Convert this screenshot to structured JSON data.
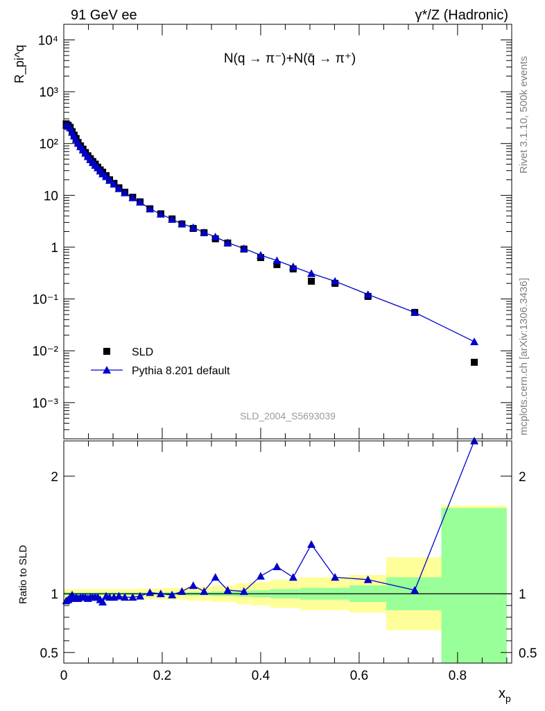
{
  "header": {
    "left": "91 GeV ee",
    "right": "γ*/Z (Hadronic)"
  },
  "side_labels": {
    "rivet": "Rivet 3.1.10,  500k events",
    "mcplots": "mcplots.cern.ch [arXiv:1306.3436]"
  },
  "colors": {
    "data": "#000000",
    "mc": "#0000cc",
    "band_stat": "#99ff99",
    "band_total": "#ffff99",
    "analysis_label": "#999999"
  },
  "chart_data": [
    {
      "type": "scatter",
      "panel": "main",
      "title": "N(q → π⁻)+N(q̄ → π⁺)",
      "analysis": "SLD_2004_S5693039",
      "ylabel": "R_pi^q",
      "xlabel": "",
      "yscale": "log",
      "xlim": [
        0,
        0.91
      ],
      "ylim": [
        0.0002,
        20000
      ],
      "y_ticks": [
        {
          "v": 0.001,
          "label": "10⁻³"
        },
        {
          "v": 0.01,
          "label": "10⁻²"
        },
        {
          "v": 0.1,
          "label": "10⁻¹"
        },
        {
          "v": 1,
          "label": "1"
        },
        {
          "v": 10,
          "label": "10"
        },
        {
          "v": 100,
          "label": "10²"
        },
        {
          "v": 1000,
          "label": "10³"
        },
        {
          "v": 10000,
          "label": "10⁴"
        }
      ],
      "legend": {
        "position": "bottom-left",
        "entries": [
          "SLD",
          "Pythia 8.201 default"
        ]
      },
      "series": [
        {
          "name": "SLD",
          "marker": "square",
          "x": [
            0.005,
            0.009,
            0.013,
            0.017,
            0.021,
            0.025,
            0.029,
            0.034,
            0.039,
            0.044,
            0.049,
            0.054,
            0.059,
            0.064,
            0.069,
            0.074,
            0.079,
            0.086,
            0.093,
            0.102,
            0.112,
            0.124,
            0.14,
            0.155,
            0.175,
            0.197,
            0.22,
            0.24,
            0.263,
            0.285,
            0.308,
            0.333,
            0.366,
            0.4,
            0.433,
            0.466,
            0.503,
            0.551,
            0.618,
            0.713,
            0.834
          ],
          "y": [
            240,
            225,
            205,
            170,
            145,
            125,
            105,
            90,
            78,
            67,
            58,
            51,
            45,
            40,
            35,
            31,
            28,
            24,
            20,
            17,
            14,
            11.5,
            9.2,
            7.5,
            5.5,
            4.4,
            3.5,
            2.8,
            2.3,
            1.9,
            1.45,
            1.2,
            0.92,
            0.63,
            0.46,
            0.38,
            0.22,
            0.2,
            0.112,
            0.055,
            0.006
          ]
        },
        {
          "name": "Pythia 8.201 default",
          "marker": "triangle",
          "x": [
            0.005,
            0.009,
            0.013,
            0.017,
            0.021,
            0.025,
            0.029,
            0.034,
            0.039,
            0.044,
            0.049,
            0.054,
            0.059,
            0.064,
            0.069,
            0.074,
            0.079,
            0.086,
            0.093,
            0.102,
            0.112,
            0.124,
            0.14,
            0.155,
            0.175,
            0.197,
            0.22,
            0.24,
            0.263,
            0.285,
            0.308,
            0.333,
            0.366,
            0.4,
            0.433,
            0.466,
            0.503,
            0.551,
            0.618,
            0.713,
            0.834
          ],
          "y": [
            225,
            215,
            200,
            165,
            140,
            120,
            101,
            87,
            75,
            65,
            56,
            49,
            43,
            38,
            34,
            29.5,
            26,
            23,
            19.5,
            16.5,
            13.5,
            11.2,
            9,
            7.4,
            5.5,
            4.35,
            3.45,
            2.82,
            2.4,
            1.92,
            1.58,
            1.22,
            0.94,
            0.7,
            0.55,
            0.42,
            0.31,
            0.22,
            0.122,
            0.055,
            0.015
          ]
        }
      ]
    },
    {
      "type": "line",
      "panel": "ratio",
      "ylabel": "Ratio to SLD",
      "xlabel": "x_p",
      "xlim": [
        0,
        0.91
      ],
      "ylim": [
        0.41,
        2.3
      ],
      "x_ticks": [
        {
          "v": 0,
          "label": "0"
        },
        {
          "v": 0.2,
          "label": "0.2"
        },
        {
          "v": 0.4,
          "label": "0.4"
        },
        {
          "v": 0.6,
          "label": "0.6"
        },
        {
          "v": 0.8,
          "label": "0.8"
        }
      ],
      "y_ticks": [
        {
          "v": 0.5,
          "label": "0.5"
        },
        {
          "v": 1,
          "label": "1"
        },
        {
          "v": 2,
          "label": "2"
        }
      ],
      "bins": [
        {
          "x0": 0.0,
          "x1": 0.02,
          "stat": 0.012,
          "total": 0.04
        },
        {
          "x0": 0.02,
          "x1": 0.06,
          "stat": 0.01,
          "total": 0.04
        },
        {
          "x0": 0.06,
          "x1": 0.1,
          "stat": 0.01,
          "total": 0.04
        },
        {
          "x0": 0.1,
          "x1": 0.15,
          "stat": 0.01,
          "total": 0.04
        },
        {
          "x0": 0.15,
          "x1": 0.2,
          "stat": 0.01,
          "total": 0.045
        },
        {
          "x0": 0.2,
          "x1": 0.25,
          "stat": 0.012,
          "total": 0.05
        },
        {
          "x0": 0.25,
          "x1": 0.3,
          "stat": 0.015,
          "total": 0.06
        },
        {
          "x0": 0.3,
          "x1": 0.35,
          "stat": 0.02,
          "total": 0.07
        },
        {
          "x0": 0.35,
          "x1": 0.38,
          "stat": 0.025,
          "total": 0.09
        },
        {
          "x0": 0.38,
          "x1": 0.42,
          "stat": 0.03,
          "total": 0.1
        },
        {
          "x0": 0.42,
          "x1": 0.48,
          "stat": 0.04,
          "total": 0.12
        },
        {
          "x0": 0.48,
          "x1": 0.58,
          "stat": 0.05,
          "total": 0.14
        },
        {
          "x0": 0.58,
          "x1": 0.655,
          "stat": 0.07,
          "total": 0.16
        },
        {
          "x0": 0.655,
          "x1": 0.767,
          "stat": 0.14,
          "total": 0.31
        },
        {
          "x0": 0.767,
          "x1": 0.9,
          "stat": 0.73,
          "total": 0.75
        }
      ],
      "series": [
        {
          "name": "Pythia 8.201 default",
          "x": [
            0.005,
            0.009,
            0.013,
            0.017,
            0.021,
            0.025,
            0.029,
            0.034,
            0.039,
            0.044,
            0.049,
            0.054,
            0.059,
            0.064,
            0.069,
            0.074,
            0.079,
            0.086,
            0.093,
            0.102,
            0.112,
            0.124,
            0.14,
            0.155,
            0.175,
            0.197,
            0.22,
            0.24,
            0.263,
            0.285,
            0.308,
            0.333,
            0.366,
            0.4,
            0.433,
            0.466,
            0.503,
            0.551,
            0.618,
            0.713,
            0.834
          ],
          "y": [
            0.94,
            0.95,
            0.97,
            0.99,
            0.96,
            0.97,
            0.96,
            0.97,
            0.97,
            0.97,
            0.96,
            0.97,
            0.97,
            0.97,
            0.97,
            0.95,
            0.93,
            0.98,
            0.97,
            0.97,
            0.98,
            0.97,
            0.97,
            0.98,
            1.01,
            1.0,
            0.99,
            1.02,
            1.07,
            1.02,
            1.14,
            1.03,
            1.02,
            1.15,
            1.23,
            1.14,
            1.42,
            1.14,
            1.12,
            1.03,
            2.32
          ]
        }
      ]
    }
  ]
}
